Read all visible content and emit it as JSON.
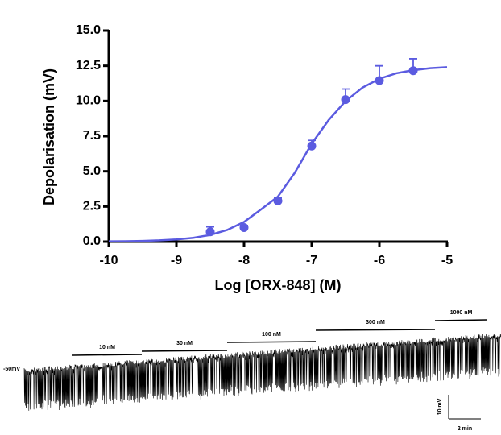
{
  "chart_data": {
    "type": "scatter",
    "xlabel": "Log [ORX-848] (M)",
    "ylabel": "Depolarisation (mV)",
    "x": [
      -8.5,
      -8,
      -7.5,
      -7,
      -6.5,
      -6,
      -5.5
    ],
    "values": [
      0.7,
      1.0,
      2.9,
      6.8,
      10.1,
      11.45,
      12.15
    ],
    "errors": [
      0.35,
      0.15,
      0.2,
      0.4,
      0.75,
      1.05,
      0.85
    ],
    "color": "#5b5be0",
    "fit": {
      "x": [
        -10,
        -9.75,
        -9.5,
        -9.25,
        -9,
        -8.75,
        -8.5,
        -8.25,
        -8,
        -7.75,
        -7.5,
        -7.25,
        -7,
        -6.75,
        -6.5,
        -6.25,
        -6,
        -5.75,
        -5.5,
        -5.25,
        -5
      ],
      "values": [
        0.02,
        0.03,
        0.05,
        0.09,
        0.16,
        0.27,
        0.48,
        0.83,
        1.4,
        2.29,
        3.2,
        4.9,
        6.97,
        8.64,
        9.99,
        10.95,
        11.58,
        11.97,
        12.19,
        12.33,
        12.4
      ]
    },
    "xlim": [
      -10,
      -5
    ],
    "xticks": [
      -10,
      -9,
      -8,
      -7,
      -6,
      -5
    ],
    "ylim": [
      0,
      15
    ],
    "yticks": [
      {
        "value": 0,
        "label": "0.0"
      },
      2.5,
      {
        "value": 5,
        "label": "5.0"
      },
      7.5,
      {
        "value": 10,
        "label": "10.0"
      },
      12.5,
      {
        "value": 15,
        "label": "15.0"
      }
    ]
  },
  "trace": {
    "baseline_label": "-50mV",
    "applications": [
      "10 nM",
      "30 nM",
      "100 nM",
      "300 nM",
      "1000 nM"
    ],
    "scale_y": "10 mV",
    "scale_x": "2 min"
  }
}
